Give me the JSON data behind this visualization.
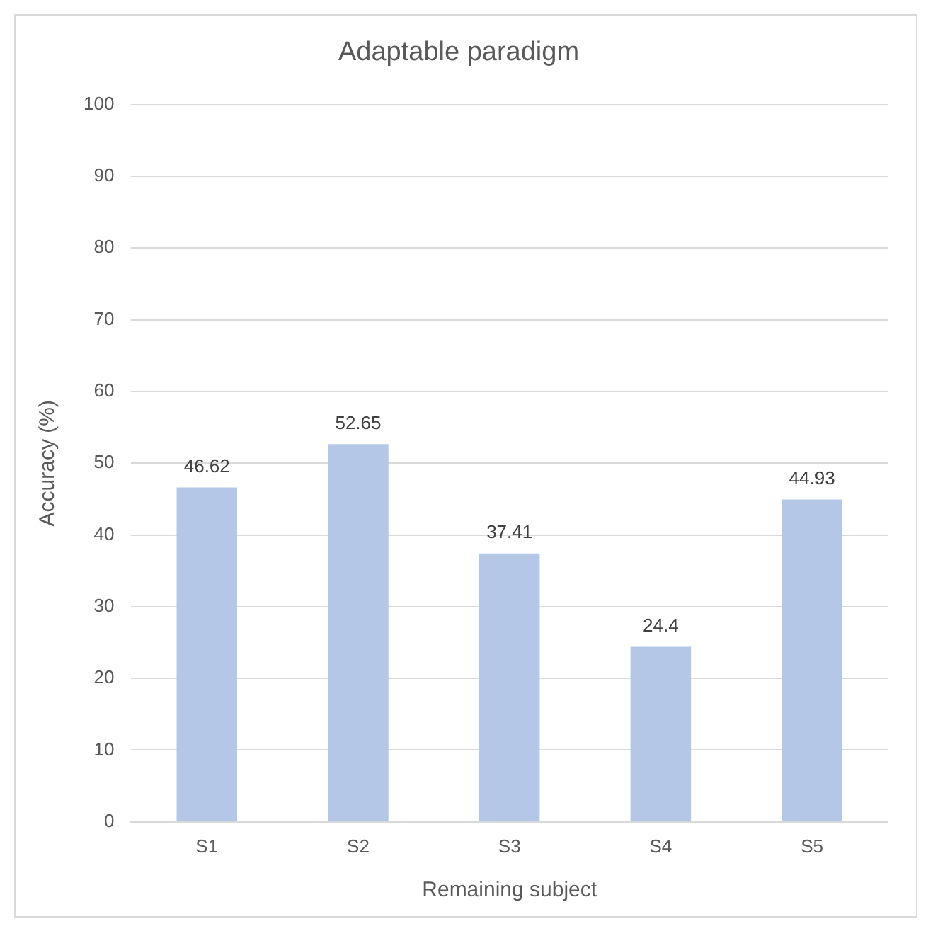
{
  "chart_data": {
    "type": "bar",
    "title": "Adaptable paradigm",
    "xlabel": "Remaining subject",
    "ylabel": "Accuracy (%)",
    "categories": [
      "S1",
      "S2",
      "S3",
      "S4",
      "S5"
    ],
    "values": [
      46.62,
      52.65,
      37.41,
      24.4,
      44.93
    ],
    "color": "#b4c7e7",
    "ylim": [
      0,
      100
    ],
    "yticks": [
      0,
      10,
      20,
      30,
      40,
      50,
      60,
      70,
      80,
      90,
      100
    ],
    "grid": "y",
    "data_labels": true
  }
}
